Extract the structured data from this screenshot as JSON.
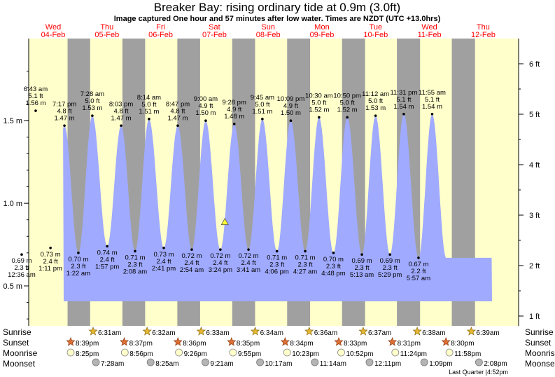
{
  "header": {
    "title": "Breaker Bay: rising  ordinary tide at 0.9m (3.0ft)",
    "subtitle": "Image captured One hour and 57 minutes after low water. Times are NZDT (UTC +13.0hrs)"
  },
  "chart_data": {
    "type": "area",
    "title": "Breaker Bay: rising  ordinary tide at 0.9m (3.0ft)",
    "y_axis_left": {
      "unit": "m",
      "ticks": [
        {
          "value": 0.5,
          "label": "0.5 m"
        },
        {
          "value": 1.0,
          "label": "1.0 m"
        },
        {
          "value": 1.5,
          "label": "1.5 m"
        }
      ]
    },
    "y_axis_right": {
      "unit": "ft",
      "ticks": [
        {
          "value": 1,
          "label": "1 ft"
        },
        {
          "value": 2,
          "label": "2 ft"
        },
        {
          "value": 3,
          "label": "3 ft"
        },
        {
          "value": 4,
          "label": "4 ft"
        },
        {
          "value": 5,
          "label": "5 ft"
        },
        {
          "value": 6,
          "label": "6 ft"
        }
      ]
    },
    "days": [
      {
        "dow": "Wed",
        "date": "04-Feb"
      },
      {
        "dow": "Thu",
        "date": "05-Feb"
      },
      {
        "dow": "Fri",
        "date": "06-Feb"
      },
      {
        "dow": "Sat",
        "date": "07-Feb"
      },
      {
        "dow": "Sun",
        "date": "08-Feb"
      },
      {
        "dow": "Mon",
        "date": "09-Feb"
      },
      {
        "dow": "Tue",
        "date": "10-Feb"
      },
      {
        "dow": "Wed",
        "date": "11-Feb"
      },
      {
        "dow": "Thu",
        "date": "12-Feb"
      }
    ],
    "tides": [
      {
        "type": "low",
        "time": "12:36 am",
        "m": 0.69,
        "ft": "2.3 ft",
        "mlabel": "0.69 m"
      },
      {
        "type": "high",
        "time": "6:43 am",
        "m": 1.56,
        "ft": "5.1 ft",
        "mlabel": "1.56 m"
      },
      {
        "type": "low",
        "time": "1:11 pm",
        "m": 0.73,
        "ft": "2.4 ft",
        "mlabel": "0.73 m"
      },
      {
        "type": "high",
        "time": "7:17 pm",
        "m": 1.47,
        "ft": "4.8 ft",
        "mlabel": "1.47 m"
      },
      {
        "type": "low",
        "time": "1:22 am",
        "m": 0.7,
        "ft": "2.3 ft",
        "mlabel": "0.70 m"
      },
      {
        "type": "high",
        "time": "7:28 am",
        "m": 1.53,
        "ft": "5.0 ft",
        "mlabel": "1.53 m"
      },
      {
        "type": "low",
        "time": "1:57 pm",
        "m": 0.74,
        "ft": "2.4 ft",
        "mlabel": "0.74 m"
      },
      {
        "type": "high",
        "time": "8:03 pm",
        "m": 1.47,
        "ft": "4.8 ft",
        "mlabel": "1.47 m"
      },
      {
        "type": "low",
        "time": "2:08 am",
        "m": 0.71,
        "ft": "2.3 ft",
        "mlabel": "0.71 m"
      },
      {
        "type": "high",
        "time": "8:14 am",
        "m": 1.51,
        "ft": "5.0 ft",
        "mlabel": "1.51 m"
      },
      {
        "type": "low",
        "time": "2:41 pm",
        "m": 0.73,
        "ft": "2.4 ft",
        "mlabel": "0.73 m"
      },
      {
        "type": "high",
        "time": "8:47 pm",
        "m": 1.47,
        "ft": "4.8 ft",
        "mlabel": "1.47 m"
      },
      {
        "type": "low",
        "time": "2:54 am",
        "m": 0.72,
        "ft": "2.4 ft",
        "mlabel": "0.72 m"
      },
      {
        "type": "high",
        "time": "9:00 am",
        "m": 1.5,
        "ft": "4.9 ft",
        "mlabel": "1.50 m"
      },
      {
        "type": "low",
        "time": "3:24 pm",
        "m": 0.72,
        "ft": "2.4 ft",
        "mlabel": "0.72 m"
      },
      {
        "type": "high",
        "time": "9:28 pm",
        "m": 1.48,
        "ft": "4.9 ft",
        "mlabel": "1.48 m"
      },
      {
        "type": "low",
        "time": "3:41 am",
        "m": 0.72,
        "ft": "2.4 ft",
        "mlabel": "0.72 m"
      },
      {
        "type": "high",
        "time": "9:45 am",
        "m": 1.51,
        "ft": "5.0 ft",
        "mlabel": "1.51 m"
      },
      {
        "type": "low",
        "time": "4:06 pm",
        "m": 0.71,
        "ft": "2.3 ft",
        "mlabel": "0.71 m"
      },
      {
        "type": "high",
        "time": "10:09 pm",
        "m": 1.5,
        "ft": "4.9 ft",
        "mlabel": "1.50 m"
      },
      {
        "type": "low",
        "time": "4:27 am",
        "m": 0.71,
        "ft": "2.3 ft",
        "mlabel": "0.71 m"
      },
      {
        "type": "high",
        "time": "10:30 am",
        "m": 1.52,
        "ft": "5.0 ft",
        "mlabel": "1.52 m"
      },
      {
        "type": "low",
        "time": "4:48 pm",
        "m": 0.7,
        "ft": "2.3 ft",
        "mlabel": "0.70 m"
      },
      {
        "type": "high",
        "time": "10:50 pm",
        "m": 1.52,
        "ft": "5.0 ft",
        "mlabel": "1.52 m"
      },
      {
        "type": "low",
        "time": "5:13 am",
        "m": 0.69,
        "ft": "2.3 ft",
        "mlabel": "0.69 m"
      },
      {
        "type": "high",
        "time": "11:12 am",
        "m": 1.53,
        "ft": "5.0 ft",
        "mlabel": "1.53 m"
      },
      {
        "type": "low",
        "time": "5:29 pm",
        "m": 0.69,
        "ft": "2.3 ft",
        "mlabel": "0.69 m"
      },
      {
        "type": "high",
        "time": "11:31 pm",
        "m": 1.54,
        "ft": "5.1 ft",
        "mlabel": "1.54 m"
      },
      {
        "type": "low",
        "time": "5:57 am",
        "m": 0.67,
        "ft": "2.2 ft",
        "mlabel": "0.67 m"
      },
      {
        "type": "high",
        "time": "11:55 am",
        "m": 1.54,
        "ft": "5.1 ft",
        "mlabel": "1.54 m"
      }
    ],
    "current": {
      "m": 0.9,
      "ft": 3.0
    },
    "colors": {
      "day": "#ffffcc",
      "night": "#a0a0a0",
      "water": "#a0aaff",
      "date": "#ff0000",
      "text": "#000000"
    }
  },
  "footer": {
    "row_labels": {
      "sunrise": "Sunrise",
      "sunset": "Sunset",
      "moonrise": "Moonrise",
      "moonset": "Moonset"
    },
    "sunrise": [
      "6:31am",
      "6:32am",
      "6:33am",
      "6:34am",
      "6:36am",
      "6:37am",
      "6:38am",
      "6:39am"
    ],
    "sunset": [
      "8:39pm",
      "8:37pm",
      "8:36pm",
      "8:35pm",
      "8:34pm",
      "8:33pm",
      "8:31pm",
      "8:30pm"
    ],
    "moonrise": [
      "8:25pm",
      "8:56pm",
      "9:26pm",
      "9:55pm",
      "10:23pm",
      "10:52pm",
      "11:24pm",
      "11:58pm"
    ],
    "moonset": [
      "7:28am",
      "8:25am",
      "9:21am",
      "10:17am",
      "11:14am",
      "12:11pm",
      "1:09pm",
      "2:08pm"
    ],
    "moon_phase": "Last Quarter",
    "moon_phase_time": "4:52pm"
  }
}
